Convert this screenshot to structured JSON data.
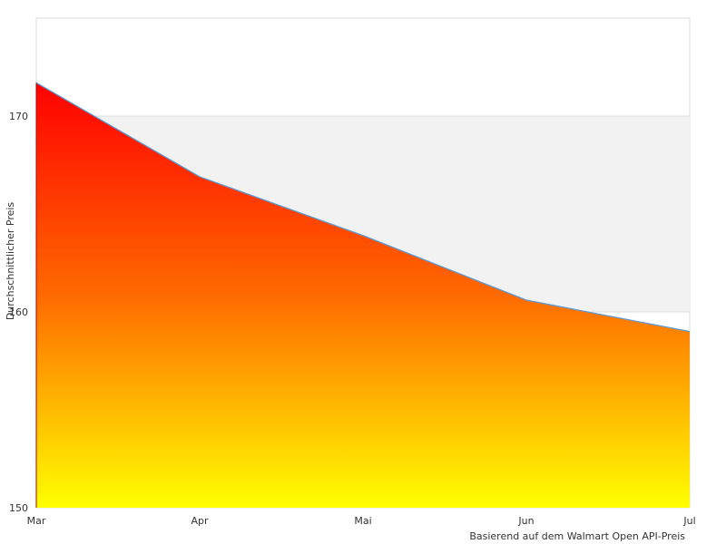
{
  "chart_data": {
    "type": "area",
    "categories": [
      "Mar",
      "Apr",
      "Mai",
      "Jun",
      "Jul"
    ],
    "values": [
      171.7,
      166.9,
      163.9,
      160.6,
      159.0
    ],
    "ylabel": "Durchschnittlicher Preis",
    "xlabel": "Basierend auf dem Walmart Open API-Preis",
    "ylim": [
      150,
      175
    ],
    "yticks": [
      "150",
      "160",
      "170"
    ],
    "band": [
      160,
      170
    ],
    "grid": true,
    "colors": {
      "line": "#5b9bd5",
      "gradient_top": "#ff0000",
      "gradient_mid": "#ff6a00",
      "gradient_bottom": "#ffff00",
      "band": "#f2f2f2",
      "axis": "#dddddd"
    }
  }
}
